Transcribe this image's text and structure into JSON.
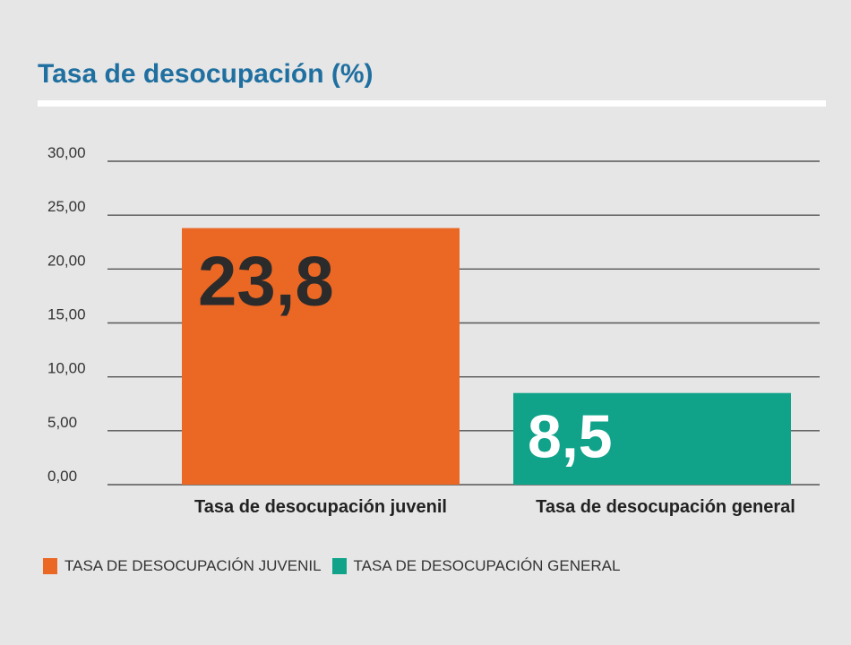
{
  "title": "Tasa de desocupación (%)",
  "colors": {
    "juvenil": "#ea6724",
    "general": "#10a38a",
    "title": "#1f6fa0"
  },
  "chart_data": {
    "type": "bar",
    "title": "Tasa de desocupación (%)",
    "categories": [
      "Tasa de desocupación juvenil",
      "Tasa de desocupación general"
    ],
    "values": [
      23.8,
      8.5
    ],
    "value_labels": [
      "23,8",
      "8,5"
    ],
    "ylim": [
      0,
      30
    ],
    "yticks": [
      "0,00",
      "5,00",
      "10,00",
      "15,00",
      "20,00",
      "25,00",
      "30,00"
    ],
    "grid": true,
    "legend_position": "bottom-left"
  },
  "legend": [
    {
      "label": "TASA DE DESOCUPACIÓN JUVENIL",
      "color": "#ea6724"
    },
    {
      "label": "TASA DE DESOCUPACIÓN GENERAL",
      "color": "#10a38a"
    }
  ]
}
